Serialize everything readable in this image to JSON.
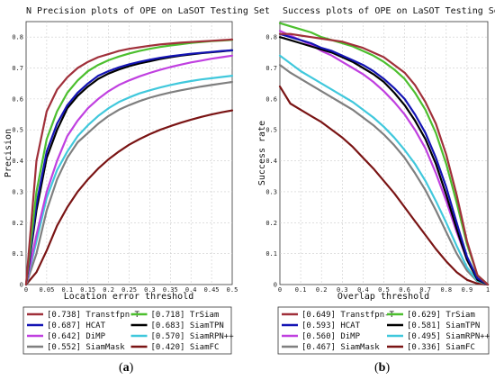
{
  "chart_data": [
    {
      "type": "line",
      "title": "N Precision plots of OPE on LaSOT Testing Set",
      "xlabel": "Location error threshold",
      "ylabel": "Precision",
      "xlim": [
        0,
        0.5
      ],
      "ylim": [
        0,
        0.85
      ],
      "x_ticks": [
        "0",
        "0.05",
        "0.1",
        "0.15",
        "0.2",
        "0.25",
        "0.3",
        "0.35",
        "0.4",
        "0.45",
        "0.5"
      ],
      "y_ticks": [
        "0",
        "0.1",
        "0.2",
        "0.3",
        "0.4",
        "0.5",
        "0.6",
        "0.7",
        "0.8"
      ],
      "grid": true,
      "legend_position": "below",
      "subfigure_label": "a",
      "x": [
        0,
        0.025,
        0.05,
        0.075,
        0.1,
        0.125,
        0.15,
        0.175,
        0.2,
        0.225,
        0.25,
        0.275,
        0.3,
        0.325,
        0.35,
        0.375,
        0.4,
        0.425,
        0.45,
        0.475,
        0.5
      ],
      "series": [
        {
          "name": "[0.738]  Transtfpn-T",
          "color": "#a0303a",
          "values": [
            0,
            0.4,
            0.56,
            0.63,
            0.67,
            0.7,
            0.72,
            0.735,
            0.745,
            0.755,
            0.762,
            0.767,
            0.772,
            0.776,
            0.779,
            0.782,
            0.784,
            0.786,
            0.788,
            0.79,
            0.792
          ]
        },
        {
          "name": "[0.718]  TrSiam",
          "color": "#4cbf2e",
          "values": [
            0,
            0.3,
            0.47,
            0.56,
            0.62,
            0.66,
            0.69,
            0.71,
            0.725,
            0.737,
            0.747,
            0.755,
            0.762,
            0.768,
            0.773,
            0.777,
            0.781,
            0.784,
            0.787,
            0.789,
            0.791
          ]
        },
        {
          "name": "[0.687]  HCAT",
          "color": "#1414b4",
          "values": [
            0,
            0.26,
            0.43,
            0.52,
            0.58,
            0.62,
            0.65,
            0.675,
            0.69,
            0.702,
            0.712,
            0.72,
            0.727,
            0.733,
            0.738,
            0.742,
            0.746,
            0.749,
            0.752,
            0.755,
            0.757
          ]
        },
        {
          "name": "[0.683]  SiamTPN",
          "color": "#000000",
          "values": [
            0,
            0.24,
            0.41,
            0.5,
            0.57,
            0.61,
            0.64,
            0.665,
            0.682,
            0.695,
            0.706,
            0.715,
            0.722,
            0.729,
            0.735,
            0.74,
            0.744,
            0.748,
            0.751,
            0.754,
            0.757
          ]
        },
        {
          "name": "[0.642]  DiMP",
          "color": "#c040e0",
          "values": [
            0,
            0.16,
            0.3,
            0.4,
            0.48,
            0.53,
            0.57,
            0.6,
            0.625,
            0.645,
            0.66,
            0.673,
            0.684,
            0.694,
            0.703,
            0.711,
            0.718,
            0.724,
            0.73,
            0.735,
            0.74
          ]
        },
        {
          "name": "[0.570]  SiamRPN++",
          "color": "#40c8dc",
          "values": [
            0,
            0.14,
            0.28,
            0.37,
            0.43,
            0.48,
            0.515,
            0.545,
            0.57,
            0.59,
            0.605,
            0.618,
            0.628,
            0.637,
            0.645,
            0.652,
            0.658,
            0.663,
            0.667,
            0.671,
            0.675
          ]
        },
        {
          "name": "[0.552]  SiamMask",
          "color": "#7f7f7f",
          "values": [
            0,
            0.1,
            0.24,
            0.34,
            0.41,
            0.46,
            0.49,
            0.52,
            0.545,
            0.565,
            0.58,
            0.593,
            0.604,
            0.613,
            0.621,
            0.628,
            0.634,
            0.64,
            0.645,
            0.65,
            0.655
          ]
        },
        {
          "name": "[0.420]  SiamFC",
          "color": "#7a1414",
          "values": [
            0,
            0.04,
            0.11,
            0.19,
            0.25,
            0.3,
            0.34,
            0.375,
            0.405,
            0.43,
            0.452,
            0.47,
            0.486,
            0.5,
            0.512,
            0.523,
            0.533,
            0.542,
            0.55,
            0.557,
            0.563
          ]
        }
      ]
    },
    {
      "type": "line",
      "title": "Success plots of OPE on LaSOT Testing Set",
      "xlabel": "Overlap threshold",
      "ylabel": "Success rate",
      "xlim": [
        0,
        1
      ],
      "ylim": [
        0,
        0.85
      ],
      "x_ticks": [
        "0",
        "0.1",
        "0.2",
        "0.3",
        "0.4",
        "0.5",
        "0.6",
        "0.7",
        "0.8",
        "0.9",
        "1"
      ],
      "y_ticks": [
        "0",
        "0.1",
        "0.2",
        "0.3",
        "0.4",
        "0.5",
        "0.6",
        "0.7",
        "0.8"
      ],
      "grid": true,
      "legend_position": "below",
      "subfigure_label": "b",
      "x": [
        0,
        0.05,
        0.1,
        0.15,
        0.2,
        0.25,
        0.3,
        0.35,
        0.4,
        0.45,
        0.5,
        0.55,
        0.6,
        0.65,
        0.7,
        0.75,
        0.8,
        0.85,
        0.9,
        0.95,
        1.0
      ],
      "series": [
        {
          "name": "[0.649]  Transtfpn-T",
          "color": "#a0303a",
          "values": [
            0.81,
            0.81,
            0.805,
            0.8,
            0.795,
            0.79,
            0.785,
            0.775,
            0.765,
            0.75,
            0.735,
            0.71,
            0.685,
            0.645,
            0.59,
            0.52,
            0.42,
            0.29,
            0.14,
            0.03,
            0
          ]
        },
        {
          "name": "[0.629]  TrSiam",
          "color": "#4cbf2e",
          "values": [
            0.845,
            0.835,
            0.825,
            0.815,
            0.8,
            0.79,
            0.78,
            0.77,
            0.755,
            0.74,
            0.72,
            0.695,
            0.665,
            0.62,
            0.565,
            0.49,
            0.39,
            0.265,
            0.13,
            0.03,
            0
          ]
        },
        {
          "name": "[0.593]  HCAT",
          "color": "#1414b4",
          "values": [
            0.81,
            0.8,
            0.79,
            0.78,
            0.765,
            0.755,
            0.74,
            0.725,
            0.71,
            0.69,
            0.665,
            0.635,
            0.6,
            0.55,
            0.49,
            0.41,
            0.315,
            0.2,
            0.09,
            0.02,
            0
          ]
        },
        {
          "name": "[0.581]  SiamTPN",
          "color": "#000000",
          "values": [
            0.8,
            0.79,
            0.78,
            0.77,
            0.76,
            0.75,
            0.735,
            0.72,
            0.7,
            0.68,
            0.655,
            0.62,
            0.58,
            0.53,
            0.47,
            0.39,
            0.29,
            0.18,
            0.08,
            0.015,
            0
          ]
        },
        {
          "name": "[0.560]  DiMP",
          "color": "#c040e0",
          "values": [
            0.82,
            0.805,
            0.79,
            0.775,
            0.755,
            0.74,
            0.72,
            0.7,
            0.68,
            0.655,
            0.625,
            0.59,
            0.55,
            0.5,
            0.44,
            0.36,
            0.27,
            0.17,
            0.08,
            0.02,
            0
          ]
        },
        {
          "name": "[0.495]  SiamRPN++",
          "color": "#40c8dc",
          "values": [
            0.74,
            0.715,
            0.69,
            0.67,
            0.65,
            0.63,
            0.61,
            0.59,
            0.565,
            0.54,
            0.51,
            0.475,
            0.435,
            0.39,
            0.335,
            0.27,
            0.2,
            0.125,
            0.055,
            0.012,
            0
          ]
        },
        {
          "name": "[0.467]  SiamMask",
          "color": "#7f7f7f",
          "values": [
            0.71,
            0.685,
            0.665,
            0.645,
            0.625,
            0.605,
            0.585,
            0.565,
            0.54,
            0.515,
            0.485,
            0.45,
            0.41,
            0.36,
            0.305,
            0.24,
            0.17,
            0.1,
            0.045,
            0.01,
            0
          ]
        },
        {
          "name": "[0.336]  SiamFC",
          "color": "#7a1414",
          "values": [
            0.64,
            0.585,
            0.565,
            0.545,
            0.525,
            0.5,
            0.475,
            0.445,
            0.41,
            0.375,
            0.335,
            0.295,
            0.25,
            0.205,
            0.16,
            0.115,
            0.075,
            0.04,
            0.015,
            0.003,
            0
          ]
        }
      ]
    }
  ]
}
